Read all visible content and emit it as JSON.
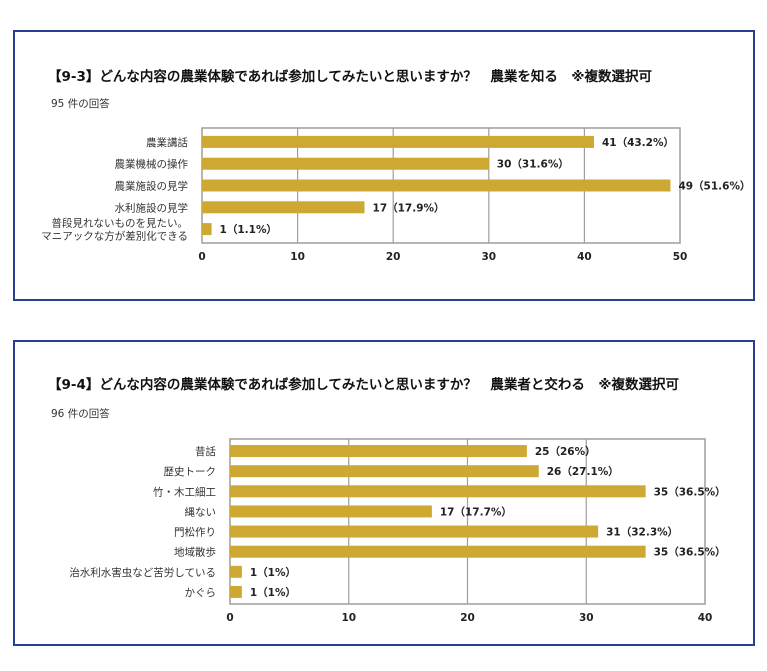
{
  "charts": [
    {
      "title": "【9-3】どんな内容の農業体験であれば参加してみたいと思いますか？　農業を知る　※複数選択可",
      "response_count": "95 件の回答"
    },
    {
      "title": "【9-4】どんな内容の農業体験であれば参加してみたいと思いますか？　農業者と交わる　※複数選択可",
      "response_count": "96 件の回答"
    }
  ],
  "colors": {
    "bar": "#cda832",
    "frame": "#2a3f8f",
    "axis": "#9e9e9e"
  },
  "chart_data": [
    {
      "type": "bar",
      "orientation": "horizontal",
      "title": "【9-3】どんな内容の農業体験であれば参加してみたいと思いますか？　農業を知る　※複数選択可",
      "categories": [
        "農業講話",
        "農業機械の操作",
        "農業施設の見学",
        "水利施設の見学",
        [
          "普段見れないものを見たい。",
          "マニアックな方が差別化できる"
        ]
      ],
      "values": [
        41,
        30,
        49,
        17,
        1
      ],
      "labels": [
        "41（43.2%）",
        "30（31.6%）",
        "49（51.6%）",
        "17（17.9%）",
        "1（1.1%）"
      ],
      "xlim": [
        0,
        50
      ],
      "ticks": [
        0,
        10,
        20,
        30,
        40,
        50
      ],
      "grid": true
    },
    {
      "type": "bar",
      "orientation": "horizontal",
      "title": "【9-4】どんな内容の農業体験であれば参加してみたいと思いますか？　農業者と交わる　※複数選択可",
      "categories": [
        "昔話",
        "歴史トーク",
        "竹・木工細工",
        "縄ない",
        "門松作り",
        "地域散歩",
        "治水利水害虫など苦労している",
        "かぐら"
      ],
      "values": [
        25,
        26,
        35,
        17,
        31,
        35,
        1,
        1
      ],
      "labels": [
        "25（26%）",
        "26（27.1%）",
        "35（36.5%）",
        "17（17.7%）",
        "31（32.3%）",
        "35（36.5%）",
        "1（1%）",
        "1（1%）"
      ],
      "xlim": [
        0,
        40
      ],
      "ticks": [
        0,
        10,
        20,
        30,
        40
      ],
      "grid": true
    }
  ]
}
